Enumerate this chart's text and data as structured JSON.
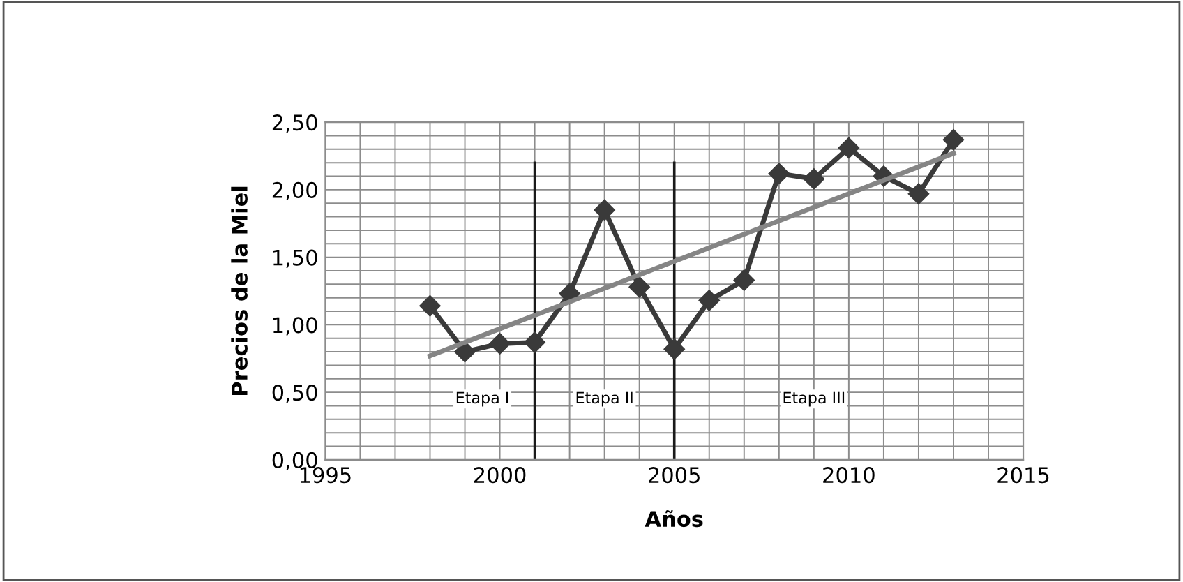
{
  "chart_data": {
    "type": "line",
    "xlabel": "Años",
    "ylabel": "Precios de la Miel",
    "xlim": [
      1995,
      2015
    ],
    "xticks": [
      1995,
      2000,
      2005,
      2010,
      2015
    ],
    "ylim": [
      0,
      2.5
    ],
    "yticks": [
      {
        "value": 0,
        "label": "0,00"
      },
      {
        "value": 0.5,
        "label": "0,50"
      },
      {
        "value": 1,
        "label": "1,00"
      },
      {
        "value": 1.5,
        "label": "1,50"
      },
      {
        "value": 2,
        "label": "2,00"
      },
      {
        "value": 2.5,
        "label": "2,50"
      }
    ],
    "grid": true,
    "legend": false,
    "series": [
      {
        "color": "#3a3a3a",
        "marker": "diamond",
        "x": [
          1998,
          1999,
          2000,
          2001,
          2002,
          2003,
          2004,
          2005,
          2006,
          2007,
          2008,
          2009,
          2010,
          2011,
          2012,
          2013
        ],
        "values": [
          1.14,
          0.8,
          0.86,
          0.87,
          1.23,
          1.85,
          1.28,
          0.82,
          1.18,
          1.33,
          2.12,
          2.08,
          2.31,
          2.1,
          1.97,
          2.37
        ]
      },
      {
        "color": "#858585",
        "marker": "none",
        "x": [
          1998,
          2013
        ],
        "values": [
          0.77,
          2.27
        ]
      }
    ],
    "ref_lines": [
      {
        "axis": "x",
        "value": 2001,
        "color": "#1a1a1a"
      },
      {
        "axis": "x",
        "value": 2005,
        "color": "#1a1a1a"
      }
    ],
    "annotations": [
      "Etapa I",
      "Etapa II",
      "Etapa III"
    ]
  }
}
